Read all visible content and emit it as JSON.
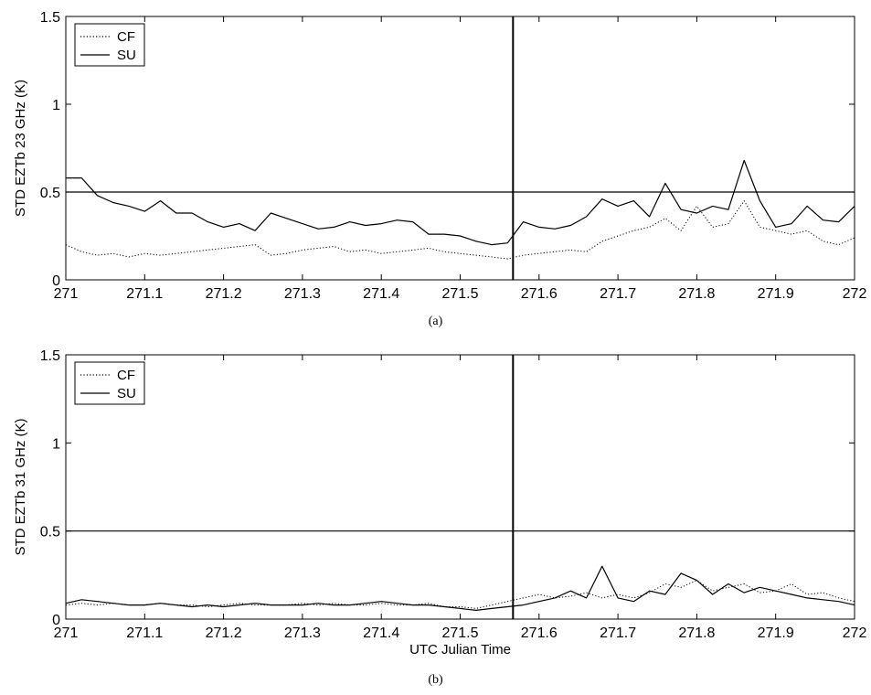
{
  "chart_data": [
    {
      "type": "line",
      "panel": "(a)",
      "caption": "(a)",
      "xlabel": "",
      "ylabel": "STD EZTb 23 GHz (K)",
      "xlim": [
        271,
        272
      ],
      "ylim": [
        0,
        1.5
      ],
      "xticks": [
        "271",
        "271.1",
        "271.2",
        "271.3",
        "271.4",
        "271.5",
        "271.6",
        "271.7",
        "271.8",
        "271.9",
        "272"
      ],
      "yticks": [
        "0",
        "0.5",
        "1",
        "1.5"
      ],
      "legend": {
        "placement": "top-left",
        "entries": [
          "CF",
          "SU"
        ]
      },
      "reference_lines": [
        {
          "orientation": "horizontal",
          "y": 0.5
        },
        {
          "orientation": "vertical",
          "x": 271.567
        }
      ],
      "series": [
        {
          "name": "CF",
          "style": "dotted",
          "x": [
            271.0,
            271.02,
            271.04,
            271.06,
            271.08,
            271.1,
            271.12,
            271.14,
            271.16,
            271.18,
            271.2,
            271.22,
            271.24,
            271.26,
            271.28,
            271.3,
            271.32,
            271.34,
            271.36,
            271.38,
            271.4,
            271.42,
            271.44,
            271.46,
            271.48,
            271.5,
            271.52,
            271.54,
            271.56,
            271.58,
            271.6,
            271.62,
            271.64,
            271.66,
            271.68,
            271.7,
            271.72,
            271.74,
            271.76,
            271.78,
            271.8,
            271.82,
            271.84,
            271.86,
            271.88,
            271.9,
            271.92,
            271.94,
            271.96,
            271.98,
            272.0
          ],
          "values": [
            0.2,
            0.16,
            0.14,
            0.15,
            0.13,
            0.15,
            0.14,
            0.15,
            0.16,
            0.17,
            0.18,
            0.19,
            0.2,
            0.14,
            0.15,
            0.17,
            0.18,
            0.19,
            0.16,
            0.17,
            0.15,
            0.16,
            0.17,
            0.18,
            0.16,
            0.15,
            0.14,
            0.13,
            0.12,
            0.14,
            0.15,
            0.16,
            0.17,
            0.16,
            0.22,
            0.25,
            0.28,
            0.3,
            0.35,
            0.28,
            0.42,
            0.3,
            0.32,
            0.45,
            0.3,
            0.28,
            0.26,
            0.28,
            0.22,
            0.2,
            0.24
          ]
        },
        {
          "name": "SU",
          "style": "solid",
          "x": [
            271.0,
            271.02,
            271.04,
            271.06,
            271.08,
            271.1,
            271.12,
            271.14,
            271.16,
            271.18,
            271.2,
            271.22,
            271.24,
            271.26,
            271.28,
            271.3,
            271.32,
            271.34,
            271.36,
            271.38,
            271.4,
            271.42,
            271.44,
            271.46,
            271.48,
            271.5,
            271.52,
            271.54,
            271.56,
            271.58,
            271.6,
            271.62,
            271.64,
            271.66,
            271.68,
            271.7,
            271.72,
            271.74,
            271.76,
            271.78,
            271.8,
            271.82,
            271.84,
            271.86,
            271.88,
            271.9,
            271.92,
            271.94,
            271.96,
            271.98,
            272.0
          ],
          "values": [
            0.58,
            0.58,
            0.48,
            0.44,
            0.42,
            0.39,
            0.45,
            0.38,
            0.38,
            0.33,
            0.3,
            0.32,
            0.28,
            0.38,
            0.35,
            0.32,
            0.29,
            0.3,
            0.33,
            0.31,
            0.32,
            0.34,
            0.33,
            0.26,
            0.26,
            0.25,
            0.22,
            0.2,
            0.21,
            0.33,
            0.3,
            0.29,
            0.31,
            0.36,
            0.46,
            0.42,
            0.45,
            0.36,
            0.55,
            0.4,
            0.38,
            0.42,
            0.4,
            0.68,
            0.45,
            0.3,
            0.32,
            0.42,
            0.34,
            0.33,
            0.42
          ]
        }
      ]
    },
    {
      "type": "line",
      "panel": "(b)",
      "caption": "(b)",
      "xlabel": "UTC Julian Time",
      "ylabel": "STD EZTb 31 GHz (K)",
      "xlim": [
        271,
        272
      ],
      "ylim": [
        0,
        1.5
      ],
      "xticks": [
        "271",
        "271.1",
        "271.2",
        "271.3",
        "271.4",
        "271.5",
        "271.6",
        "271.7",
        "271.8",
        "271.9",
        "272"
      ],
      "yticks": [
        "0",
        "0.5",
        "1",
        "1.5"
      ],
      "legend": {
        "placement": "top-left",
        "entries": [
          "CF",
          "SU"
        ]
      },
      "reference_lines": [
        {
          "orientation": "horizontal",
          "y": 0.5
        },
        {
          "orientation": "vertical",
          "x": 271.567
        }
      ],
      "series": [
        {
          "name": "CF",
          "style": "dotted",
          "x": [
            271.0,
            271.02,
            271.04,
            271.06,
            271.08,
            271.1,
            271.12,
            271.14,
            271.16,
            271.18,
            271.2,
            271.22,
            271.24,
            271.26,
            271.28,
            271.3,
            271.32,
            271.34,
            271.36,
            271.38,
            271.4,
            271.42,
            271.44,
            271.46,
            271.48,
            271.5,
            271.52,
            271.54,
            271.56,
            271.58,
            271.6,
            271.62,
            271.64,
            271.66,
            271.68,
            271.7,
            271.72,
            271.74,
            271.76,
            271.78,
            271.8,
            271.82,
            271.84,
            271.86,
            271.88,
            271.9,
            271.92,
            271.94,
            271.96,
            271.98,
            272.0
          ],
          "values": [
            0.08,
            0.09,
            0.08,
            0.09,
            0.08,
            0.08,
            0.09,
            0.08,
            0.08,
            0.07,
            0.08,
            0.09,
            0.08,
            0.08,
            0.08,
            0.09,
            0.08,
            0.09,
            0.08,
            0.08,
            0.09,
            0.08,
            0.08,
            0.09,
            0.07,
            0.07,
            0.06,
            0.08,
            0.1,
            0.12,
            0.14,
            0.12,
            0.13,
            0.15,
            0.12,
            0.14,
            0.12,
            0.15,
            0.2,
            0.18,
            0.22,
            0.16,
            0.18,
            0.2,
            0.15,
            0.16,
            0.2,
            0.14,
            0.15,
            0.12,
            0.1
          ]
        },
        {
          "name": "SU",
          "style": "solid",
          "x": [
            271.0,
            271.02,
            271.04,
            271.06,
            271.08,
            271.1,
            271.12,
            271.14,
            271.16,
            271.18,
            271.2,
            271.22,
            271.24,
            271.26,
            271.28,
            271.3,
            271.32,
            271.34,
            271.36,
            271.38,
            271.4,
            271.42,
            271.44,
            271.46,
            271.48,
            271.5,
            271.52,
            271.54,
            271.56,
            271.58,
            271.6,
            271.62,
            271.64,
            271.66,
            271.68,
            271.7,
            271.72,
            271.74,
            271.76,
            271.78,
            271.8,
            271.82,
            271.84,
            271.86,
            271.88,
            271.9,
            271.92,
            271.94,
            271.96,
            271.98,
            272.0
          ],
          "values": [
            0.09,
            0.11,
            0.1,
            0.09,
            0.08,
            0.08,
            0.09,
            0.08,
            0.07,
            0.08,
            0.07,
            0.08,
            0.09,
            0.08,
            0.08,
            0.08,
            0.09,
            0.08,
            0.08,
            0.09,
            0.1,
            0.09,
            0.08,
            0.08,
            0.07,
            0.06,
            0.05,
            0.06,
            0.07,
            0.08,
            0.1,
            0.12,
            0.16,
            0.12,
            0.3,
            0.12,
            0.1,
            0.16,
            0.14,
            0.26,
            0.22,
            0.14,
            0.2,
            0.15,
            0.18,
            0.16,
            0.14,
            0.12,
            0.11,
            0.1,
            0.08
          ]
        }
      ]
    }
  ]
}
